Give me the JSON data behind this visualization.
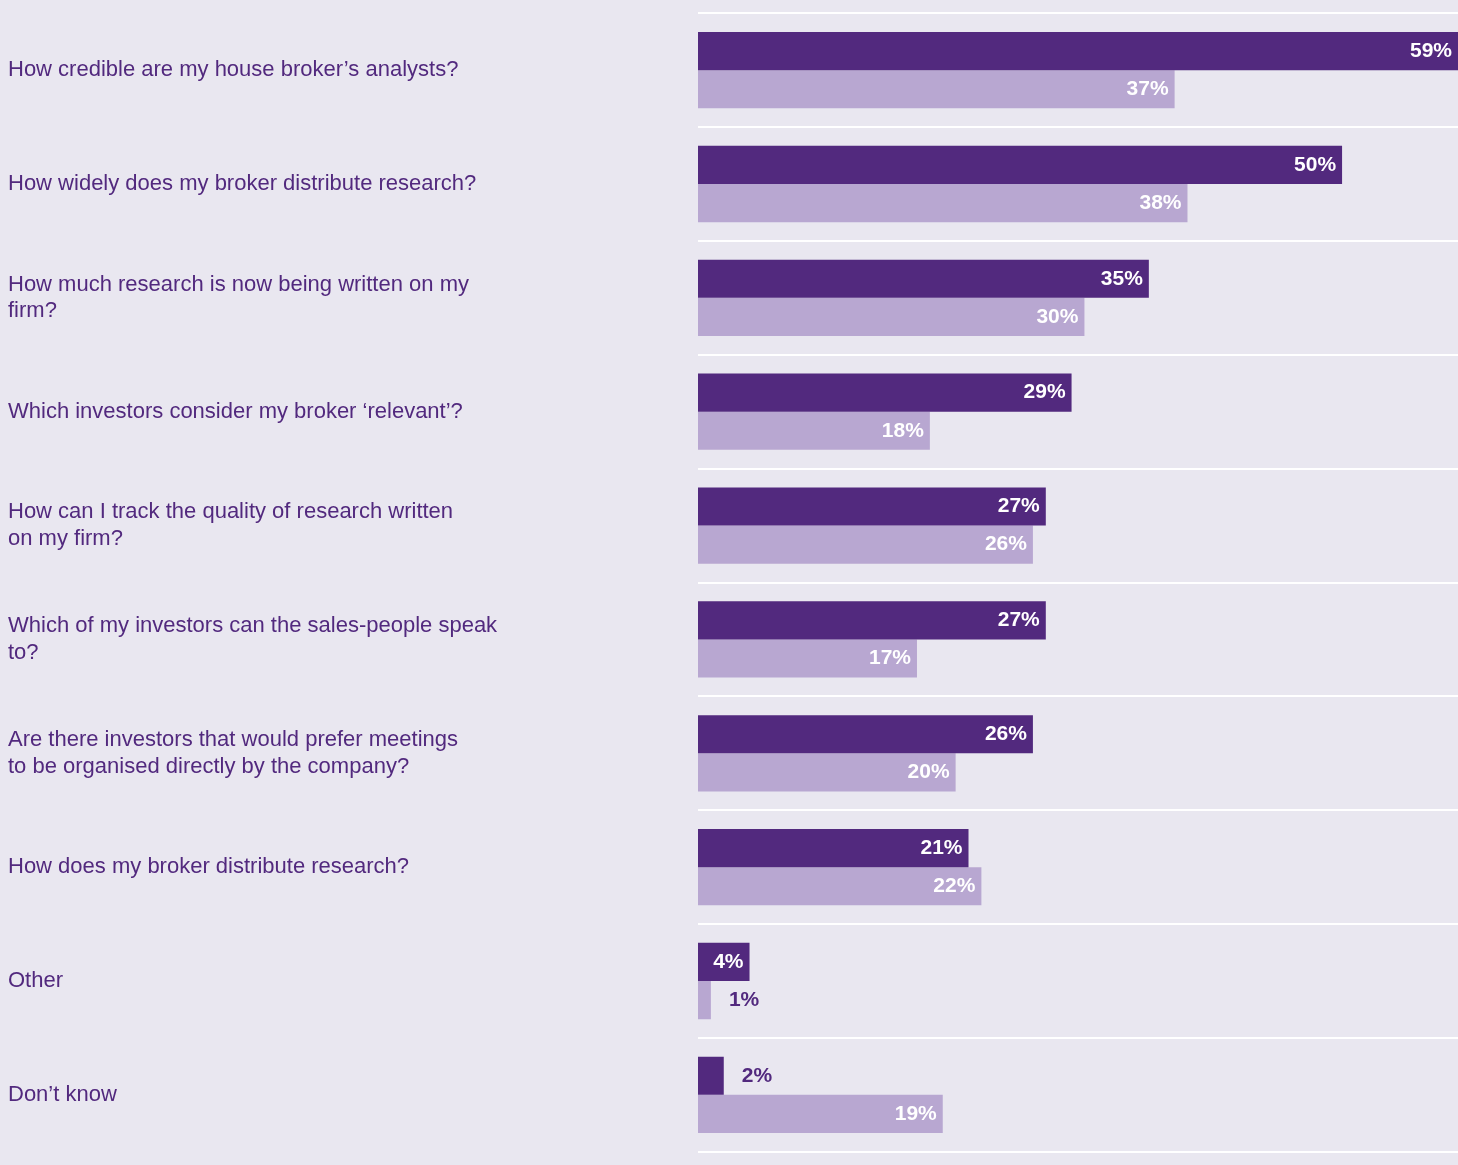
{
  "chart_data": {
    "type": "bar",
    "orientation": "horizontal",
    "categories": [
      "How credible are my house broker’s analysts?",
      "How widely does my broker distribute research?",
      "How much research is now being written on my firm?",
      "Which investors consider my broker ‘relevant’?",
      "How can I track the quality of research written on my firm?",
      "Which of my investors can the sales-people speak to?",
      "Are there investors that would prefer meetings to be organised directly by the company?",
      "How does my broker distribute research?",
      "Other",
      "Don’t know"
    ],
    "series": [
      {
        "color": "#52297e",
        "values": [
          59,
          50,
          35,
          29,
          27,
          27,
          26,
          21,
          4,
          2
        ],
        "value_labels": [
          "59%",
          "50%",
          "35%",
          "29%",
          "27%",
          "27%",
          "26%",
          "21%",
          "4%",
          "2%"
        ]
      },
      {
        "color": "#b8a7d1",
        "values": [
          37,
          38,
          30,
          18,
          26,
          17,
          20,
          22,
          1,
          19
        ],
        "value_labels": [
          "37%",
          "38%",
          "30%",
          "18%",
          "26%",
          "17%",
          "20%",
          "22%",
          "1%",
          "19%"
        ]
      }
    ],
    "grid": "y",
    "legend": false,
    "tick_labels": "y"
  }
}
